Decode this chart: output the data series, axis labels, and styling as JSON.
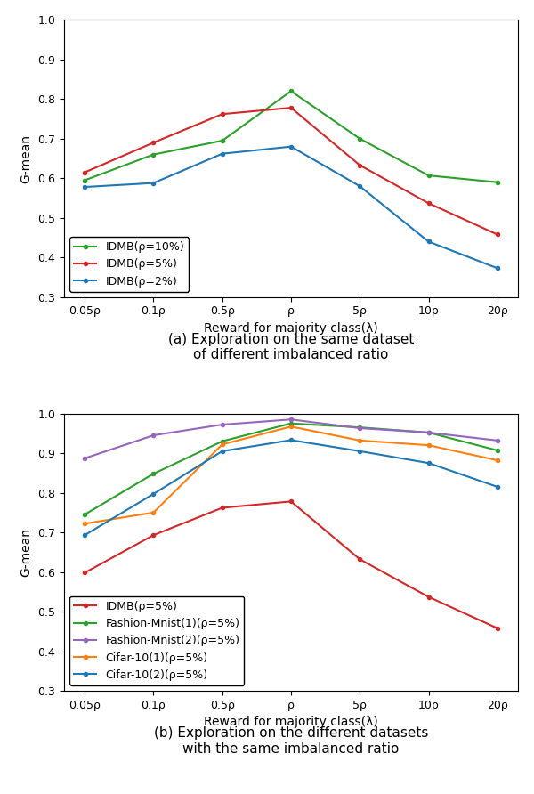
{
  "x_labels": [
    "0.05ρ",
    "0.1ρ",
    "0.5ρ",
    "ρ",
    "5ρ",
    "10ρ",
    "20ρ"
  ],
  "x_positions": [
    0,
    1,
    2,
    3,
    4,
    5,
    6
  ],
  "plot_a": {
    "series": [
      {
        "label": "IDMB(ρ=10%)",
        "color": "#2ca02c",
        "values": [
          0.595,
          0.66,
          0.695,
          0.82,
          0.7,
          0.607,
          0.59
        ]
      },
      {
        "label": "IDMB(ρ=5%)",
        "color": "#d62728",
        "values": [
          0.615,
          0.69,
          0.762,
          0.778,
          0.633,
          0.537,
          0.458
        ]
      },
      {
        "label": "IDMB(ρ=2%)",
        "color": "#1f77b4",
        "values": [
          0.578,
          0.588,
          0.662,
          0.68,
          0.58,
          0.44,
          0.373
        ]
      }
    ],
    "ylim": [
      0.3,
      1.0
    ],
    "yticks": [
      0.3,
      0.4,
      0.5,
      0.6,
      0.7,
      0.8,
      0.9,
      1.0
    ],
    "ylabel": "G-mean",
    "xlabel": "Reward for majority class(λ)",
    "caption_line1": "(a) Exploration on the same dataset",
    "caption_line2": "of different imbalanced ratio"
  },
  "plot_b": {
    "series": [
      {
        "label": "IDMB(ρ=5%)",
        "color": "#d62728",
        "values": [
          0.598,
          0.693,
          0.762,
          0.778,
          0.632,
          0.537,
          0.458
        ]
      },
      {
        "label": "Fashion-Mnist(1)(ρ=5%)",
        "color": "#2ca02c",
        "values": [
          0.745,
          0.848,
          0.93,
          0.975,
          0.965,
          0.952,
          0.907
        ]
      },
      {
        "label": "Fashion-Mnist(2)(ρ=5%)",
        "color": "#9467bd",
        "values": [
          0.887,
          0.945,
          0.972,
          0.985,
          0.963,
          0.952,
          0.932
        ]
      },
      {
        "label": "Cifar-10(1)(ρ=5%)",
        "color": "#ff7f0e",
        "values": [
          0.722,
          0.75,
          0.922,
          0.967,
          0.932,
          0.92,
          0.882
        ]
      },
      {
        "label": "Cifar-10(2)(ρ=5%)",
        "color": "#1f77b4",
        "values": [
          0.693,
          0.797,
          0.905,
          0.933,
          0.905,
          0.875,
          0.815
        ]
      }
    ],
    "ylim": [
      0.3,
      1.0
    ],
    "yticks": [
      0.3,
      0.4,
      0.5,
      0.6,
      0.7,
      0.8,
      0.9,
      1.0
    ],
    "ylabel": "G-mean",
    "xlabel": "Reward for majority class(λ)",
    "caption_line1": "(b) Exploration on the different datasets",
    "caption_line2": "with the same imbalanced ratio"
  },
  "marker": ".",
  "markersize": 6,
  "linewidth": 1.5,
  "legend_fontsize": 9,
  "axis_label_fontsize": 10,
  "caption_fontsize": 11,
  "tick_fontsize": 9
}
